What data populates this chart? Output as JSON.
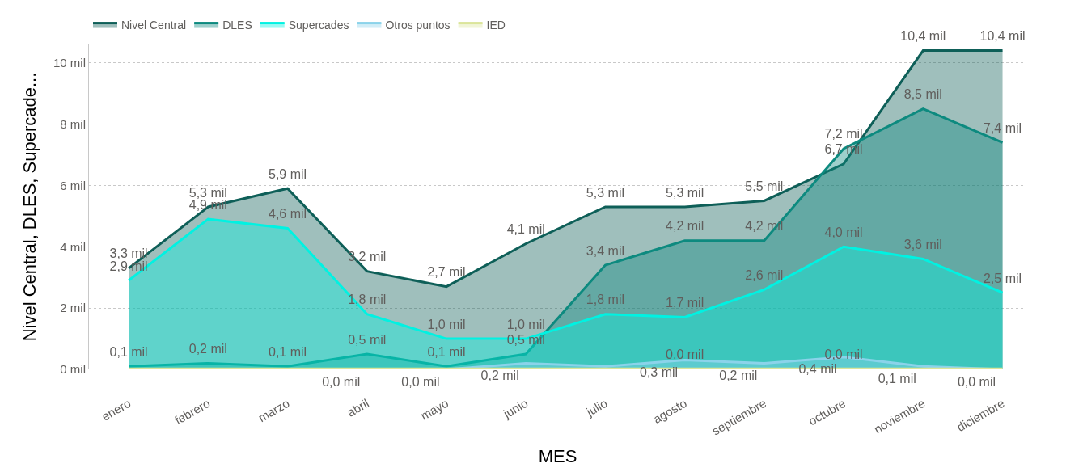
{
  "chart_data": {
    "type": "area",
    "xlabel": "MES",
    "ylabel": "Nivel Central, DLES, Supercade...",
    "legend": "top left",
    "grid": "y",
    "line_style": "solid",
    "marker": "none",
    "categories": [
      "enero",
      "febrero",
      "marzo",
      "abril",
      "mayo",
      "junio",
      "julio",
      "agosto",
      "septiembre",
      "octubre",
      "noviembre",
      "diciembre"
    ],
    "ylim": [
      0,
      10.6
    ],
    "yticks": [
      {
        "value": 0,
        "label": "0 mil"
      },
      {
        "value": 2,
        "label": "2 mil"
      },
      {
        "value": 4,
        "label": "4 mil"
      },
      {
        "value": 6,
        "label": "6 mil"
      },
      {
        "value": 8,
        "label": "8 mil"
      },
      {
        "value": 10,
        "label": "10 mil"
      }
    ],
    "series": [
      {
        "name": "Nivel Central",
        "color": "#0e5f58",
        "values": [
          3.3,
          5.3,
          5.9,
          3.2,
          2.7,
          4.1,
          5.3,
          5.3,
          5.5,
          6.7,
          10.4,
          10.4
        ],
        "value_labels": [
          "3,3 mil",
          "5,3 mil",
          "5,9 mil",
          "3,2 mil",
          "2,7 mil",
          "4,1 mil",
          "5,3 mil",
          "5,3 mil",
          "5,5 mil",
          "6,7 mil",
          "10,4 mil",
          "10,4 mil"
        ]
      },
      {
        "name": "DLES",
        "color": "#0d8a7f",
        "values": [
          0.1,
          0.2,
          0.1,
          0.5,
          0.1,
          0.5,
          3.4,
          4.2,
          4.2,
          7.2,
          8.5,
          7.4
        ],
        "value_labels": [
          "0,1 mil",
          "0,2 mil",
          "0,1 mil",
          "0,5 mil",
          "0,1 mil",
          "0,5 mil",
          "3,4 mil",
          "4,2 mil",
          "4,2 mil",
          "7,2 mil",
          "8,5 mil",
          "7,4 mil"
        ]
      },
      {
        "name": "Supercades",
        "color": "#00f2e2",
        "values": [
          2.9,
          4.9,
          4.6,
          1.8,
          1.0,
          1.0,
          1.8,
          1.7,
          2.6,
          4.0,
          3.6,
          2.5
        ],
        "value_labels": [
          "2,9 mil",
          "4,9 mil",
          "4,6 mil",
          "1,8 mil",
          "1,0 mil",
          "1,0 mil",
          "1,8 mil",
          "1,7 mil",
          "2,6 mil",
          "4,0 mil",
          "3,6 mil",
          "2,5 mil"
        ]
      },
      {
        "name": "Otros puntos",
        "color": "#8bd3ea",
        "values": [
          0.0,
          0.0,
          0.0,
          0.0,
          0.0,
          0.2,
          0.1,
          0.3,
          0.2,
          0.4,
          0.1,
          0.0
        ],
        "value_labels": [
          null,
          null,
          null,
          "0,0 mil",
          "0,0 mil",
          "0,2 mil",
          null,
          "0,3 mil",
          "0,2 mil",
          "0,4 mil",
          "0,1 mil",
          "0,0 mil"
        ]
      },
      {
        "name": "IED",
        "color": "#dbe59a",
        "values": [
          0.02,
          0.02,
          0.02,
          0.02,
          0.02,
          0.02,
          0.02,
          0.02,
          0.02,
          0.02,
          0.02,
          0.02
        ],
        "value_labels": [
          null,
          null,
          null,
          null,
          null,
          null,
          null,
          "0,0 mil",
          null,
          "0,0 mil",
          null,
          null
        ]
      }
    ]
  }
}
